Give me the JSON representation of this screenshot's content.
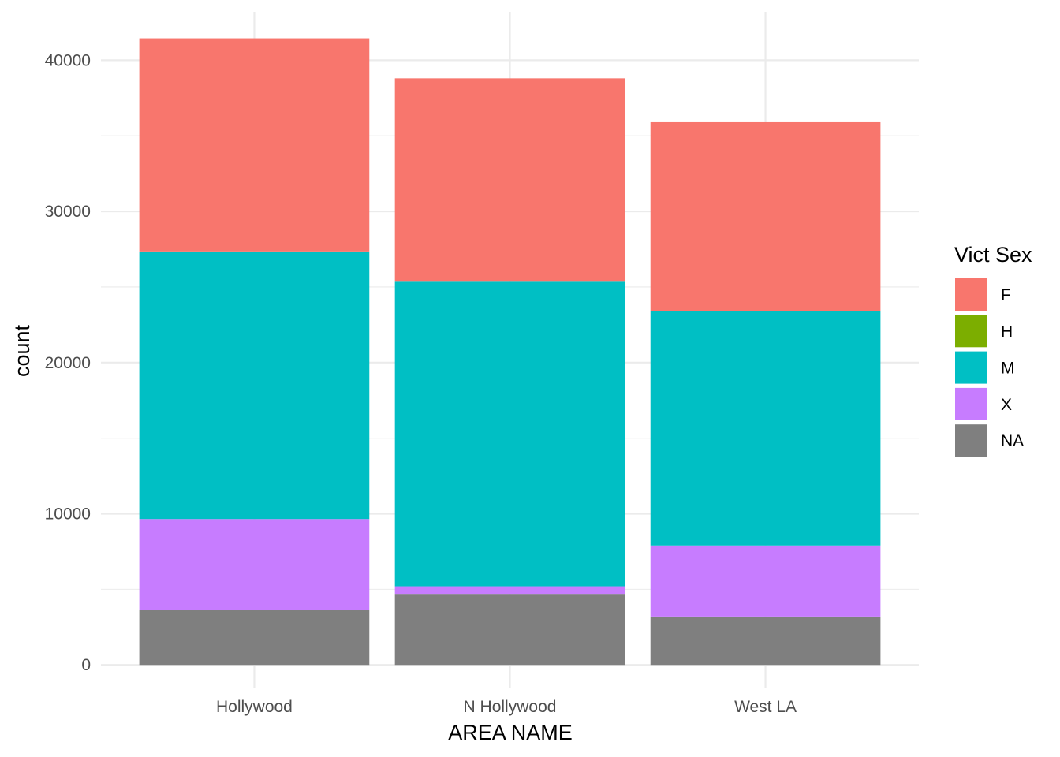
{
  "chart_data": {
    "type": "bar",
    "stacked": true,
    "categories": [
      "Hollywood",
      "N Hollywood",
      "West LA"
    ],
    "series": [
      {
        "name": "F",
        "color": "#F8766D",
        "values": [
          14100,
          13400,
          12500
        ]
      },
      {
        "name": "H",
        "color": "#7CAE00",
        "values": [
          0,
          0,
          0
        ]
      },
      {
        "name": "M",
        "color": "#00BFC4",
        "values": [
          17700,
          20200,
          15500
        ]
      },
      {
        "name": "X",
        "color": "#C77CFF",
        "values": [
          6000,
          500,
          4700
        ]
      },
      {
        "name": "NA",
        "color": "#7F7F7F",
        "values": [
          3650,
          4700,
          3200
        ]
      }
    ],
    "stack_order_bottom_to_top": [
      "NA",
      "X",
      "M",
      "H",
      "F"
    ],
    "xlabel": "AREA NAME",
    "ylabel": "count",
    "ylim": [
      -1500,
      43200
    ],
    "yticks": [
      0,
      10000,
      20000,
      30000,
      40000
    ],
    "ytick_labels": [
      "0",
      "10000",
      "20000",
      "30000",
      "40000"
    ],
    "grid": true,
    "legend": {
      "title": "Vict Sex",
      "position": "right"
    }
  }
}
